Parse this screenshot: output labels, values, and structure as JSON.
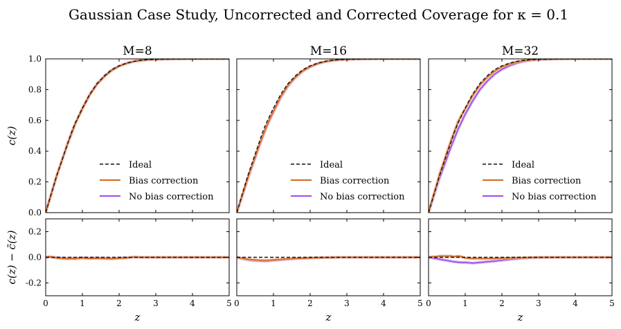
{
  "figure": {
    "title": "Gaussian Case Study, Uncorrected and Corrected Coverage for κ = 0.1"
  },
  "colors": {
    "ideal": "#111111",
    "bias": "#d2691e",
    "nobias": "#9b4dea",
    "nobias_band": "#c8a2f5",
    "bias_band": "#f0b48a"
  },
  "chart_data": [
    {
      "type": "line",
      "title": "M=8",
      "xlabel": "z",
      "ylabel": "c(z)",
      "xlim": [
        0,
        5
      ],
      "ylim": [
        0,
        1.0
      ],
      "xticks": [
        0,
        1,
        2,
        3,
        4,
        5
      ],
      "yticks": [
        0.0,
        0.2,
        0.4,
        0.6,
        0.8,
        1.0
      ],
      "legend": {
        "position": "lower-right",
        "entries": [
          "Ideal",
          "Bias correction",
          "No bias correction"
        ]
      },
      "x": [
        0,
        0.1,
        0.2,
        0.3,
        0.4,
        0.5,
        0.6,
        0.7,
        0.8,
        0.9,
        1.0,
        1.2,
        1.4,
        1.6,
        1.8,
        2.0,
        2.2,
        2.4,
        2.6,
        2.8,
        3.0,
        3.5,
        4.0,
        4.5,
        5.0
      ],
      "series": [
        {
          "name": "Ideal",
          "style": "dashed",
          "values": [
            0,
            0.08,
            0.16,
            0.24,
            0.31,
            0.38,
            0.45,
            0.52,
            0.58,
            0.63,
            0.68,
            0.77,
            0.84,
            0.89,
            0.93,
            0.955,
            0.972,
            0.984,
            0.991,
            0.995,
            0.997,
            0.999,
            1.0,
            1.0,
            1.0
          ]
        },
        {
          "name": "Bias correction",
          "style": "solid",
          "values": [
            0,
            0.08,
            0.16,
            0.24,
            0.31,
            0.38,
            0.45,
            0.51,
            0.575,
            0.625,
            0.675,
            0.765,
            0.835,
            0.885,
            0.925,
            0.952,
            0.97,
            0.983,
            0.99,
            0.995,
            0.997,
            0.999,
            1.0,
            1.0,
            1.0
          ]
        },
        {
          "name": "No bias correction",
          "style": "solid",
          "values": [
            0,
            0.08,
            0.16,
            0.24,
            0.31,
            0.38,
            0.45,
            0.515,
            0.575,
            0.628,
            0.678,
            0.768,
            0.838,
            0.888,
            0.928,
            0.953,
            0.971,
            0.984,
            0.991,
            0.995,
            0.997,
            0.999,
            1.0,
            1.0,
            1.0
          ]
        }
      ]
    },
    {
      "type": "line",
      "title": "M=16",
      "xlabel": "z",
      "ylabel": "",
      "xlim": [
        0,
        5
      ],
      "ylim": [
        0,
        1.0
      ],
      "xticks": [
        0,
        1,
        2,
        3,
        4,
        5
      ],
      "yticks": [
        0.0,
        0.2,
        0.4,
        0.6,
        0.8,
        1.0
      ],
      "legend": {
        "position": "lower-right",
        "entries": [
          "Ideal",
          "Bias correction",
          "No bias correction"
        ]
      },
      "x": [
        0,
        0.1,
        0.2,
        0.3,
        0.4,
        0.5,
        0.6,
        0.7,
        0.8,
        0.9,
        1.0,
        1.2,
        1.4,
        1.6,
        1.8,
        2.0,
        2.2,
        2.4,
        2.6,
        2.8,
        3.0,
        3.5,
        4.0,
        4.5,
        5.0
      ],
      "series": [
        {
          "name": "Ideal",
          "style": "dashed",
          "values": [
            0,
            0.08,
            0.16,
            0.24,
            0.31,
            0.38,
            0.45,
            0.52,
            0.58,
            0.63,
            0.68,
            0.77,
            0.84,
            0.89,
            0.93,
            0.955,
            0.972,
            0.984,
            0.991,
            0.995,
            0.997,
            0.999,
            1.0,
            1.0,
            1.0
          ]
        },
        {
          "name": "Bias correction",
          "style": "solid",
          "values": [
            0,
            0.075,
            0.15,
            0.225,
            0.295,
            0.36,
            0.43,
            0.495,
            0.555,
            0.61,
            0.66,
            0.755,
            0.83,
            0.882,
            0.922,
            0.95,
            0.969,
            0.982,
            0.99,
            0.994,
            0.997,
            0.999,
            1.0,
            1.0,
            1.0
          ]
        },
        {
          "name": "No bias correction",
          "style": "solid",
          "values": [
            0,
            0.072,
            0.145,
            0.22,
            0.29,
            0.355,
            0.425,
            0.49,
            0.55,
            0.605,
            0.655,
            0.75,
            0.825,
            0.878,
            0.92,
            0.948,
            0.968,
            0.981,
            0.989,
            0.994,
            0.997,
            0.999,
            1.0,
            1.0,
            1.0
          ]
        }
      ]
    },
    {
      "type": "line",
      "title": "M=32",
      "xlabel": "z",
      "ylabel": "",
      "xlim": [
        0,
        5
      ],
      "ylim": [
        0,
        1.0
      ],
      "xticks": [
        0,
        1,
        2,
        3,
        4,
        5
      ],
      "yticks": [
        0.0,
        0.2,
        0.4,
        0.6,
        0.8,
        1.0
      ],
      "legend": {
        "position": "lower-right",
        "entries": [
          "Ideal",
          "Bias correction",
          "No bias correction"
        ]
      },
      "x": [
        0,
        0.1,
        0.2,
        0.3,
        0.4,
        0.5,
        0.6,
        0.7,
        0.8,
        0.9,
        1.0,
        1.2,
        1.4,
        1.6,
        1.8,
        2.0,
        2.2,
        2.4,
        2.6,
        2.8,
        3.0,
        3.5,
        4.0,
        4.5,
        5.0
      ],
      "series": [
        {
          "name": "Ideal",
          "style": "dashed",
          "values": [
            0,
            0.08,
            0.16,
            0.24,
            0.31,
            0.38,
            0.45,
            0.52,
            0.58,
            0.63,
            0.68,
            0.77,
            0.84,
            0.89,
            0.93,
            0.955,
            0.972,
            0.984,
            0.991,
            0.995,
            0.997,
            0.999,
            1.0,
            1.0,
            1.0
          ]
        },
        {
          "name": "Bias correction",
          "style": "solid",
          "values": [
            0,
            0.085,
            0.165,
            0.25,
            0.32,
            0.39,
            0.46,
            0.525,
            0.59,
            0.635,
            0.675,
            0.76,
            0.83,
            0.88,
            0.92,
            0.948,
            0.966,
            0.98,
            0.988,
            0.994,
            0.997,
            0.999,
            1.0,
            1.0,
            1.0
          ]
        },
        {
          "name": "No bias correction",
          "style": "solid",
          "values": [
            0,
            0.075,
            0.15,
            0.225,
            0.29,
            0.355,
            0.42,
            0.48,
            0.54,
            0.59,
            0.64,
            0.725,
            0.8,
            0.855,
            0.9,
            0.932,
            0.955,
            0.972,
            0.984,
            0.991,
            0.995,
            0.999,
            1.0,
            1.0,
            1.0
          ]
        }
      ]
    },
    {
      "type": "line",
      "title": "",
      "xlabel": "z",
      "ylabel": "c(z) − c̄(z)",
      "xlim": [
        0,
        5
      ],
      "ylim": [
        -0.3,
        0.3
      ],
      "xticks": [
        0,
        1,
        2,
        3,
        4,
        5
      ],
      "yticks": [
        -0.2,
        0.0,
        0.2
      ],
      "x": [
        0,
        0.1,
        0.2,
        0.3,
        0.4,
        0.5,
        0.6,
        0.7,
        0.8,
        0.9,
        1.0,
        1.2,
        1.4,
        1.6,
        1.8,
        2.0,
        2.2,
        2.4,
        2.6,
        2.8,
        3.0,
        3.5,
        4.0,
        4.5,
        5.0
      ],
      "series": [
        {
          "name": "Ideal",
          "style": "dashed",
          "values": [
            0,
            0,
            0,
            0,
            0,
            0,
            0,
            0,
            0,
            0,
            0,
            0,
            0,
            0,
            0,
            0,
            0,
            0,
            0,
            0,
            0,
            0,
            0,
            0,
            0
          ]
        },
        {
          "name": "Bias correction",
          "style": "solid",
          "values": [
            0,
            0.005,
            0,
            -0.005,
            -0.008,
            -0.01,
            -0.012,
            -0.01,
            -0.012,
            -0.008,
            -0.005,
            -0.01,
            -0.008,
            -0.01,
            -0.012,
            -0.008,
            -0.005,
            0.002,
            0,
            0,
            0,
            0,
            0,
            0,
            0
          ]
        },
        {
          "name": "No bias correction",
          "style": "solid",
          "values": [
            0,
            0.004,
            0.002,
            -0.002,
            -0.004,
            -0.006,
            -0.008,
            -0.006,
            -0.008,
            -0.005,
            -0.003,
            -0.006,
            -0.004,
            -0.006,
            -0.008,
            -0.005,
            -0.003,
            0.002,
            0,
            0,
            0,
            0,
            0,
            0,
            0
          ]
        }
      ]
    },
    {
      "type": "line",
      "title": "",
      "xlabel": "z",
      "ylabel": "",
      "xlim": [
        0,
        5
      ],
      "ylim": [
        -0.3,
        0.3
      ],
      "xticks": [
        0,
        1,
        2,
        3,
        4,
        5
      ],
      "yticks": [
        -0.2,
        0.0,
        0.2
      ],
      "x": [
        0,
        0.1,
        0.2,
        0.3,
        0.4,
        0.5,
        0.6,
        0.7,
        0.8,
        0.9,
        1.0,
        1.2,
        1.4,
        1.6,
        1.8,
        2.0,
        2.2,
        2.4,
        2.6,
        2.8,
        3.0,
        3.5,
        4.0,
        4.5,
        5.0
      ],
      "series": [
        {
          "name": "Ideal",
          "style": "dashed",
          "values": [
            0,
            0,
            0,
            0,
            0,
            0,
            0,
            0,
            0,
            0,
            0,
            0,
            0,
            0,
            0,
            0,
            0,
            0,
            0,
            0,
            0,
            0,
            0,
            0,
            0
          ]
        },
        {
          "name": "Bias correction",
          "style": "solid",
          "values": [
            0,
            -0.005,
            -0.01,
            -0.015,
            -0.018,
            -0.02,
            -0.022,
            -0.024,
            -0.024,
            -0.022,
            -0.02,
            -0.016,
            -0.012,
            -0.009,
            -0.007,
            -0.005,
            -0.003,
            -0.002,
            -0.001,
            0,
            0,
            0,
            0,
            0,
            0
          ]
        },
        {
          "name": "No bias correction",
          "style": "solid",
          "values": [
            0,
            -0.008,
            -0.014,
            -0.02,
            -0.024,
            -0.027,
            -0.028,
            -0.03,
            -0.03,
            -0.028,
            -0.025,
            -0.02,
            -0.015,
            -0.011,
            -0.008,
            -0.006,
            -0.004,
            -0.002,
            -0.001,
            0,
            0,
            0,
            0,
            0,
            0
          ]
        }
      ]
    },
    {
      "type": "line",
      "title": "",
      "xlabel": "z",
      "ylabel": "",
      "xlim": [
        0,
        5
      ],
      "ylim": [
        -0.3,
        0.3
      ],
      "xticks": [
        0,
        1,
        2,
        3,
        4,
        5
      ],
      "yticks": [
        -0.2,
        0.0,
        0.2
      ],
      "x": [
        0,
        0.1,
        0.2,
        0.3,
        0.4,
        0.5,
        0.6,
        0.7,
        0.8,
        0.9,
        1.0,
        1.2,
        1.4,
        1.6,
        1.8,
        2.0,
        2.2,
        2.4,
        2.6,
        2.8,
        3.0,
        3.5,
        4.0,
        4.5,
        5.0
      ],
      "series": [
        {
          "name": "Ideal",
          "style": "dashed",
          "values": [
            0,
            0,
            0,
            0,
            0,
            0,
            0,
            0,
            0,
            0,
            0,
            0,
            0,
            0,
            0,
            0,
            0,
            0,
            0,
            0,
            0,
            0,
            0,
            0,
            0
          ]
        },
        {
          "name": "Bias correction",
          "style": "solid",
          "values": [
            0,
            0.005,
            0.005,
            0.01,
            0.01,
            0.01,
            0.01,
            0.005,
            0.01,
            0.005,
            -0.005,
            -0.01,
            -0.01,
            -0.01,
            -0.01,
            -0.007,
            -0.006,
            -0.004,
            -0.003,
            -0.001,
            0,
            0,
            0,
            0,
            0
          ]
        },
        {
          "name": "No bias correction",
          "style": "solid",
          "values": [
            0,
            -0.005,
            -0.01,
            -0.015,
            -0.02,
            -0.025,
            -0.03,
            -0.035,
            -0.038,
            -0.04,
            -0.04,
            -0.045,
            -0.04,
            -0.035,
            -0.03,
            -0.023,
            -0.017,
            -0.012,
            -0.007,
            -0.004,
            -0.002,
            0,
            0,
            0,
            0
          ]
        }
      ]
    }
  ]
}
